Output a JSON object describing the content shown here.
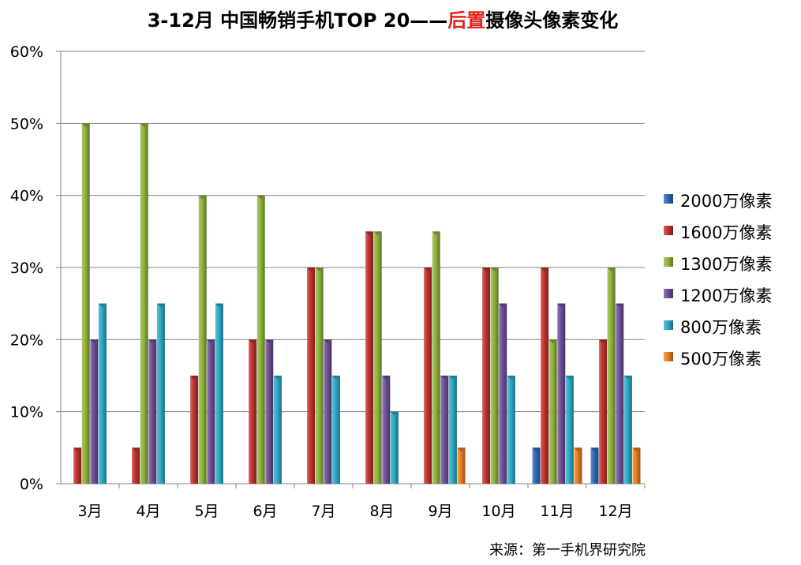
{
  "chart_data": {
    "type": "bar",
    "title_parts": [
      {
        "text": "3-12月 中国畅销手机TOP 20——",
        "color": "#000000"
      },
      {
        "text": "后置",
        "color": "#e0201b"
      },
      {
        "text": "摄像头像素变化",
        "color": "#000000"
      }
    ],
    "categories": [
      "3月",
      "4月",
      "5月",
      "6月",
      "7月",
      "8月",
      "9月",
      "10月",
      "11月",
      "12月"
    ],
    "ylim": [
      0,
      60
    ],
    "yticks": [
      0,
      10,
      20,
      30,
      40,
      50,
      60
    ],
    "ytick_labels": [
      "0%",
      "10%",
      "20%",
      "30%",
      "40%",
      "50%",
      "60%"
    ],
    "grid": true,
    "legend_position": "right",
    "series": [
      {
        "name": "2000万像素",
        "color": "#2f66b3",
        "values": [
          0,
          0,
          0,
          0,
          0,
          0,
          0,
          0,
          5,
          5
        ]
      },
      {
        "name": "1600万像素",
        "color": "#c0312e",
        "values": [
          5,
          5,
          15,
          20,
          30,
          35,
          30,
          30,
          30,
          20
        ]
      },
      {
        "name": "1300万像素",
        "color": "#8fb23b",
        "values": [
          50,
          50,
          40,
          40,
          30,
          35,
          35,
          30,
          20,
          30
        ]
      },
      {
        "name": "1200万像素",
        "color": "#6e4e98",
        "values": [
          20,
          20,
          20,
          20,
          20,
          15,
          15,
          25,
          25,
          25
        ]
      },
      {
        "name": "800万像素",
        "color": "#2aa9c7",
        "values": [
          25,
          25,
          25,
          15,
          15,
          10,
          15,
          15,
          15,
          15
        ]
      },
      {
        "name": "500万像素",
        "color": "#e87d1e",
        "values": [
          0,
          0,
          0,
          0,
          0,
          0,
          5,
          0,
          5,
          5
        ]
      }
    ],
    "source": "来源：第一手机界研究院"
  }
}
